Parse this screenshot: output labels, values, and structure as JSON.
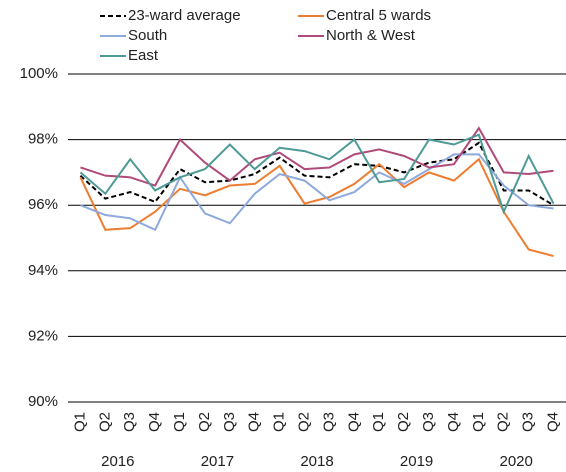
{
  "chart_data": {
    "type": "line",
    "categories": [
      "Q1",
      "Q2",
      "Q3",
      "Q4",
      "Q1",
      "Q2",
      "Q3",
      "Q4",
      "Q1",
      "Q2",
      "Q3",
      "Q4",
      "Q1",
      "Q2",
      "Q3",
      "Q4",
      "Q1",
      "Q2",
      "Q3",
      "Q4"
    ],
    "year_groups": [
      "2016",
      "2017",
      "2018",
      "2019",
      "2020"
    ],
    "series": [
      {
        "name": "23-ward average",
        "color": "#000000",
        "dash": true,
        "values": [
          96.9,
          96.2,
          96.4,
          96.1,
          97.1,
          96.7,
          96.75,
          96.95,
          97.45,
          96.9,
          96.85,
          97.25,
          97.2,
          97.0,
          97.3,
          97.4,
          97.9,
          96.45,
          96.45,
          96.0
        ]
      },
      {
        "name": "Central 5 wards",
        "color": "#ED7D31",
        "dash": false,
        "values": [
          96.85,
          95.25,
          95.3,
          95.8,
          96.5,
          96.3,
          96.6,
          96.65,
          97.2,
          96.05,
          96.25,
          96.65,
          97.25,
          96.55,
          97.0,
          96.75,
          97.4,
          95.8,
          94.65,
          94.45
        ]
      },
      {
        "name": "South",
        "color": "#8EA9DB",
        "dash": false,
        "values": [
          96.0,
          95.7,
          95.6,
          95.25,
          96.85,
          95.75,
          95.45,
          96.35,
          96.95,
          96.75,
          96.15,
          96.4,
          97.0,
          96.65,
          97.1,
          97.55,
          97.55,
          96.6,
          96.0,
          95.9
        ]
      },
      {
        "name": "North & West",
        "color": "#B04A7A",
        "dash": false,
        "values": [
          97.15,
          96.9,
          96.85,
          96.6,
          98.0,
          97.3,
          96.75,
          97.4,
          97.6,
          97.1,
          97.15,
          97.55,
          97.7,
          97.5,
          97.15,
          97.25,
          98.35,
          97.0,
          96.95,
          97.05
        ]
      },
      {
        "name": "East",
        "color": "#4E9A96",
        "dash": false,
        "values": [
          97.0,
          96.35,
          97.4,
          96.45,
          96.85,
          97.1,
          97.85,
          97.1,
          97.75,
          97.65,
          97.4,
          98.0,
          96.7,
          96.8,
          98.0,
          97.85,
          98.15,
          95.8,
          97.5,
          96.05
        ]
      }
    ],
    "ylim": [
      90,
      100
    ],
    "yticks": [
      {
        "value": 90,
        "label": "90%"
      },
      {
        "value": 92,
        "label": "92%"
      },
      {
        "value": 94,
        "label": "94%"
      },
      {
        "value": 96,
        "label": "96%"
      },
      {
        "value": 98,
        "label": "98%"
      },
      {
        "value": 100,
        "label": "100%"
      }
    ],
    "grid": true
  }
}
